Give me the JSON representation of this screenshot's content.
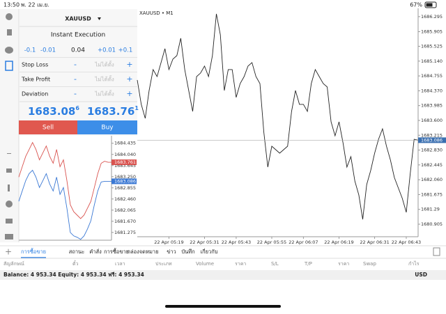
{
  "status_bar": {
    "time": "13:50",
    "date": "พ. 22 เม.ย.",
    "battery": "67%"
  },
  "order_panel": {
    "symbol": "XAUUSD",
    "execution": "Instant Execution",
    "volume_steps": [
      "-0.1",
      "-0.01",
      "0.04",
      "+0.01",
      "+0.1"
    ],
    "rows": [
      {
        "label": "Stop Loss",
        "minus": "-",
        "value": "ไม่ได้ตั้ง",
        "plus": "+"
      },
      {
        "label": "Take Profit",
        "minus": "-",
        "value": "ไม่ได้ตั้ง",
        "plus": "+"
      },
      {
        "label": "Deviation",
        "minus": "-",
        "value": "ไม่ได้ตั้ง",
        "plus": "+"
      }
    ],
    "bid": {
      "main": "1683.08",
      "last": "6"
    },
    "ask": {
      "main": "1683.76",
      "last": "1"
    },
    "sell": "Sell",
    "buy": "Buy"
  },
  "mini_chart": {
    "type": "line",
    "series": [
      {
        "color": "#d9534f",
        "values": [
          1683.235,
          1683.602,
          1683.97,
          1684.215,
          1684.46,
          1684.215,
          1683.847,
          1684.092,
          1684.337,
          1683.97,
          1683.725,
          1684.215,
          1683.602,
          1683.847,
          1683.112,
          1682.255,
          1682.01,
          1681.887,
          1681.765,
          1681.887,
          1682.132,
          1682.377,
          1682.867,
          1683.357,
          1683.725,
          1683.798,
          1683.761,
          1683.761
        ]
      },
      {
        "color": "#3a78d4",
        "values": [
          1682.377,
          1682.745,
          1683.112,
          1683.357,
          1683.48,
          1683.235,
          1682.867,
          1683.112,
          1683.357,
          1682.99,
          1682.745,
          1683.235,
          1682.622,
          1682.867,
          1682.132,
          1681.275,
          1681.152,
          1681.103,
          1681.03,
          1681.152,
          1681.397,
          1681.691,
          1682.255,
          1682.745,
          1683.063,
          1683.086,
          1683.086,
          1683.086
        ]
      }
    ],
    "ylim": [
      1681.0,
      1684.7
    ],
    "yticks": [
      1684.435,
      {
        "value": 1684.04,
        "label": "1684.040"
      },
      1683.645,
      {
        "value": 1683.25,
        "label": "1683.250"
      },
      1682.855,
      {
        "value": 1682.46,
        "label": "1682.460"
      },
      1682.065,
      {
        "value": 1681.67,
        "label": "1681.670"
      },
      1681.275
    ],
    "ask": 1683.761,
    "bid": 1683.086
  },
  "chart_data": {
    "type": "line",
    "title": "XAUUSD • M1",
    "series": [
      {
        "color": "#222222",
        "values": [
          1684.649,
          1684.016,
          1683.654,
          1684.377,
          1684.92,
          1684.739,
          1685.101,
          1685.463,
          1684.92,
          1685.192,
          1685.282,
          1685.734,
          1684.92,
          1684.377,
          1683.835,
          1684.739,
          1684.83,
          1685.011,
          1684.739,
          1685.282,
          1686.367,
          1685.825,
          1684.377,
          1684.92,
          1684.92,
          1684.197,
          1684.558,
          1684.739,
          1685.011,
          1685.101,
          1684.739,
          1684.558,
          1683.292,
          1682.388,
          1682.93,
          1682.84,
          1682.749,
          1682.84,
          1682.93,
          1683.835,
          1684.377,
          1684.016,
          1684.016,
          1683.835,
          1684.558,
          1684.92,
          1684.739,
          1684.558,
          1684.468,
          1683.563,
          1683.202,
          1683.563,
          1683.021,
          1682.388,
          1682.659,
          1682.026,
          1681.664,
          1681.031,
          1681.935,
          1682.297,
          1682.749,
          1683.111,
          1683.383,
          1682.93,
          1682.568,
          1682.116,
          1681.845,
          1681.574,
          1681.212,
          1682.207,
          1683.111,
          1683.086
        ]
      }
    ],
    "xlim": [
      0,
      71
    ],
    "xticks": [
      {
        "value": 8,
        "label": "22 Apr 05:19"
      },
      {
        "value": 17,
        "label": "22 Apr 05:31"
      },
      {
        "value": 25,
        "label": "22 Apr 05:43"
      },
      {
        "value": 34,
        "label": "22 Apr 05:55"
      },
      {
        "value": 42,
        "label": "22 Apr 06:07"
      },
      {
        "value": 51,
        "label": "22 Apr 06:19"
      },
      {
        "value": 60,
        "label": "22 Apr 06:31"
      },
      {
        "value": 68,
        "label": "22 Apr 06:43"
      }
    ],
    "ylim": [
      1680.58,
      1686.51
    ],
    "yticks": [
      1686.295,
      1685.905,
      1685.525,
      {
        "value": 1685.14,
        "label": "1685.140"
      },
      1684.755,
      {
        "value": 1684.37,
        "label": "1684.370"
      },
      1683.985,
      {
        "value": 1683.6,
        "label": "1683.600"
      },
      1683.215,
      {
        "value": 1682.83,
        "label": "1682.830"
      },
      1682.445,
      {
        "value": 1682.06,
        "label": "1682.060"
      },
      1681.675,
      1681.29,
      1680.905
    ],
    "current_price": 1683.086
  },
  "tabs": [
    "การซื้อขาย",
    "สถานะ",
    "คำสั่ง",
    "การซื้อขาย",
    "กล่องจดหมาย",
    "ข่าว",
    "บันทึก",
    "เกี่ยวกับ"
  ],
  "table_header": [
    "สัญลักษณ์",
    "ตั๋ว",
    "เวลา",
    "ประเภท",
    "Volume",
    "ราคา",
    "S/L",
    "T/P",
    "ราคา",
    "Swap",
    "กำไร"
  ],
  "footer": {
    "balance": "Balance: 4 953.34 Equity: 4 953.34 ฟรี: 4 953.34",
    "currency": "USD"
  }
}
